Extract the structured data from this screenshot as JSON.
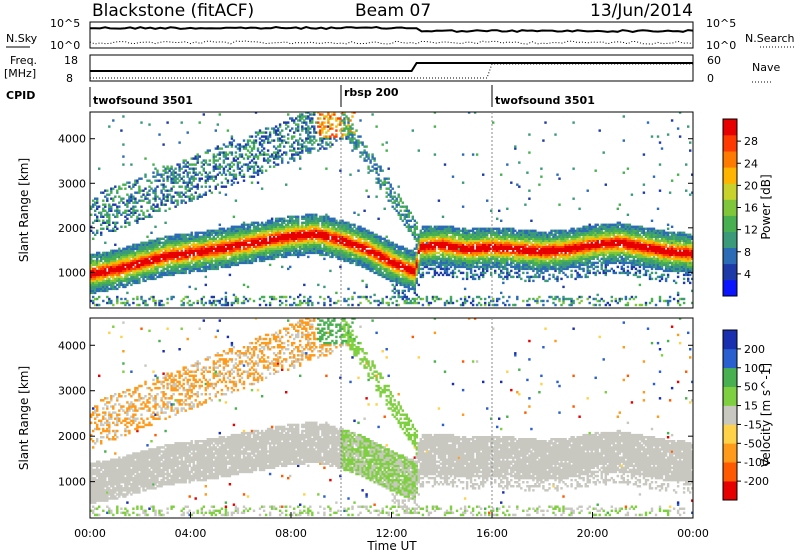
{
  "header": {
    "radar": "Blackstone (fitACF)",
    "beam": "Beam 07",
    "date": "13/Jun/2014"
  },
  "top_panels": {
    "nsky_label": "N.Sky",
    "nsearch_label": "N.Search",
    "nsky_ticks": [
      "10^5",
      "10^0"
    ],
    "nsearch_ticks": [
      "10^5",
      "10^0"
    ],
    "freq_label": "Freq.",
    "freq_unit": "[MHz]",
    "freq_ticks": [
      "18",
      "8"
    ],
    "nave_label": "Nave",
    "nave_ticks": [
      "60",
      "0"
    ],
    "cpid_label": "CPID",
    "cpid_segments": [
      {
        "label": "twofsound 3501",
        "start_hour": 0
      },
      {
        "label": "rbsp 200",
        "start_hour": 10
      },
      {
        "label": "twofsound 3501",
        "start_hour": 16
      }
    ]
  },
  "chart_data": [
    {
      "type": "heatmap",
      "quantity": "power",
      "ylabel": "Slant Range [km]",
      "ylim": [
        200,
        4600
      ],
      "yticks": [
        1000,
        2000,
        3000,
        4000
      ],
      "xlim": [
        "00:00",
        "24:00"
      ],
      "colorbar": {
        "label": "Power [dB]",
        "range": [
          0,
          32
        ],
        "ticks": [
          "28",
          "24",
          "20",
          "16",
          "12",
          "8",
          "4"
        ],
        "colors": [
          "#0a14ff",
          "#1e3aa8",
          "#2c6bb5",
          "#3a9a7a",
          "#48b050",
          "#7fc63a",
          "#c8d22a",
          "#ffb400",
          "#ff7a00",
          "#ff3a00",
          "#e60000"
        ]
      },
      "main_band": [
        {
          "t": 0,
          "r": 950
        },
        {
          "t": 1,
          "r": 1050
        },
        {
          "t": 2,
          "r": 1200
        },
        {
          "t": 3,
          "r": 1350
        },
        {
          "t": 4,
          "r": 1420
        },
        {
          "t": 5,
          "r": 1500
        },
        {
          "t": 6,
          "r": 1600
        },
        {
          "t": 7,
          "r": 1700
        },
        {
          "t": 8,
          "r": 1800
        },
        {
          "t": 9,
          "r": 1850
        },
        {
          "t": 10,
          "r": 1700
        },
        {
          "t": 11,
          "r": 1500
        },
        {
          "t": 12,
          "r": 1200
        },
        {
          "t": 12.9,
          "r": 1000
        },
        {
          "t": 13.1,
          "r": 1550
        },
        {
          "t": 14,
          "r": 1600
        },
        {
          "t": 15,
          "r": 1500
        },
        {
          "t": 16,
          "r": 1550
        },
        {
          "t": 17,
          "r": 1500
        },
        {
          "t": 18,
          "r": 1450
        },
        {
          "t": 19,
          "r": 1500
        },
        {
          "t": 20,
          "r": 1600
        },
        {
          "t": 21,
          "r": 1650
        },
        {
          "t": 22,
          "r": 1550
        },
        {
          "t": 23,
          "r": 1450
        },
        {
          "t": 24,
          "r": 1400
        }
      ]
    },
    {
      "type": "heatmap",
      "quantity": "velocity",
      "ylabel": "Slant Range [km]",
      "xlabel": "Time UT",
      "ylim": [
        200,
        4600
      ],
      "yticks": [
        1000,
        2000,
        3000,
        4000
      ],
      "xticks": [
        "00:00",
        "04:00",
        "08:00",
        "12:00",
        "16:00",
        "20:00",
        "00:00"
      ],
      "colorbar": {
        "label": "Velocity [m s^-1]",
        "ticks": [
          "200",
          "100",
          "50",
          "15",
          "-15",
          "-50",
          "-100",
          "-200"
        ],
        "colors": [
          "#1a2fb0",
          "#2a5fd0",
          "#48b050",
          "#7fd040",
          "#c8c8c0",
          "#ffd24a",
          "#ff9a1a",
          "#ff5a00",
          "#e60000"
        ]
      }
    }
  ]
}
